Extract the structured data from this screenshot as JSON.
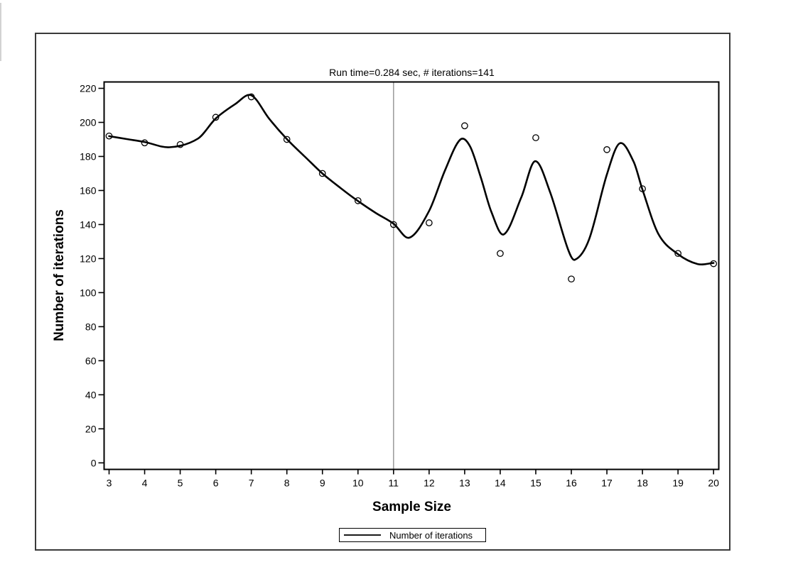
{
  "window": {
    "background": "#ffffff",
    "frame_color": "#3a3a3a"
  },
  "chart_data": {
    "type": "line",
    "title": "Run time=0.284 sec, # iterations=141",
    "xlabel": "Sample Size",
    "ylabel": "Number of iterations",
    "grid": false,
    "xlim": [
      3,
      20
    ],
    "ylim": [
      0,
      220
    ],
    "x_ticks": [
      3,
      4,
      5,
      6,
      7,
      8,
      9,
      10,
      11,
      12,
      13,
      14,
      15,
      16,
      17,
      18,
      19,
      20
    ],
    "y_ticks": [
      0,
      20,
      40,
      60,
      80,
      100,
      120,
      140,
      160,
      180,
      200,
      220
    ],
    "reference_line": {
      "x": 11,
      "color": "#9a9a9a"
    },
    "legend": {
      "position": "bottom-center",
      "label": "Number of iterations"
    },
    "series": [
      {
        "name": "Number of iterations",
        "marker": "open-circle",
        "x": [
          3,
          4,
          5,
          6,
          7,
          8,
          9,
          10,
          11,
          12,
          13,
          14,
          15,
          16,
          17,
          18,
          19,
          20
        ],
        "y": [
          192,
          188,
          187,
          203,
          215,
          190,
          170,
          154,
          140,
          141,
          198,
          123,
          191,
          108,
          184,
          161,
          123,
          117
        ]
      }
    ],
    "fit_curve": [
      [
        3.0,
        191.9
      ],
      [
        3.5,
        190.2
      ],
      [
        4.0,
        188.5
      ],
      [
        4.7,
        185.4
      ],
      [
        5.5,
        190.5
      ],
      [
        6.0,
        202.3
      ],
      [
        6.55,
        210.8
      ],
      [
        7.0,
        215.9
      ],
      [
        7.5,
        202.2
      ],
      [
        8.0,
        190.2
      ],
      [
        8.5,
        180.0
      ],
      [
        9.0,
        170.0
      ],
      [
        9.5,
        161.6
      ],
      [
        10.0,
        153.8
      ],
      [
        10.5,
        146.8
      ],
      [
        11.0,
        140.5
      ],
      [
        11.45,
        132.3
      ],
      [
        12.0,
        148.0
      ],
      [
        12.45,
        172.0
      ],
      [
        12.87,
        189.8
      ],
      [
        13.15,
        186.0
      ],
      [
        13.45,
        168.0
      ],
      [
        13.75,
        147.5
      ],
      [
        14.1,
        134.2
      ],
      [
        14.6,
        156.4
      ],
      [
        14.98,
        177.2
      ],
      [
        15.4,
        159.2
      ],
      [
        15.9,
        125.8
      ],
      [
        16.1,
        119.3
      ],
      [
        16.5,
        131.3
      ],
      [
        17.0,
        169.5
      ],
      [
        17.36,
        187.7
      ],
      [
        17.75,
        177.0
      ],
      [
        18.0,
        160.5
      ],
      [
        18.45,
        134.4
      ],
      [
        19.0,
        122.6
      ],
      [
        19.55,
        116.8
      ],
      [
        20.0,
        117.4
      ]
    ],
    "colors": {
      "line": "#000000",
      "marker_stroke": "#000000",
      "axis": "#000000",
      "reference_line": "#9a9a9a",
      "text": "#000000"
    }
  }
}
